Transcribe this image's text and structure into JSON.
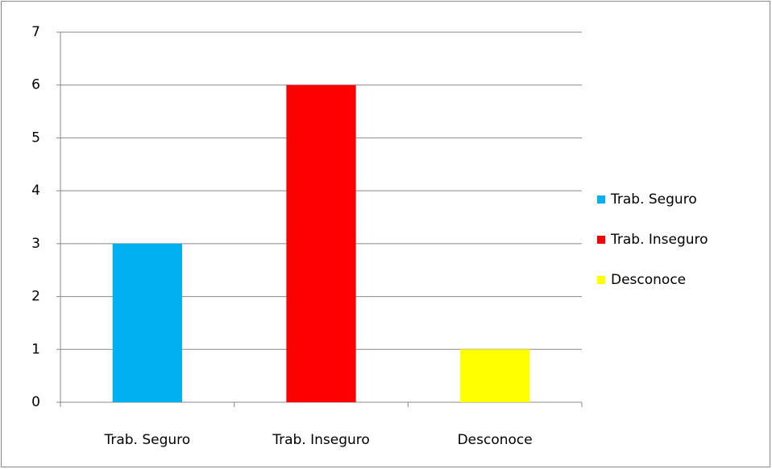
{
  "chart_data": {
    "type": "bar",
    "categories": [
      "Trab. Seguro",
      "Trab. Inseguro",
      "Desconoce"
    ],
    "values": [
      3,
      6,
      1
    ],
    "colors": [
      "#00b0f0",
      "#ff0000",
      "#ffff00"
    ],
    "ylim": [
      0,
      7
    ],
    "yticks": [
      0,
      1,
      2,
      3,
      4,
      5,
      6,
      7
    ],
    "grid": true,
    "legend": "right"
  }
}
